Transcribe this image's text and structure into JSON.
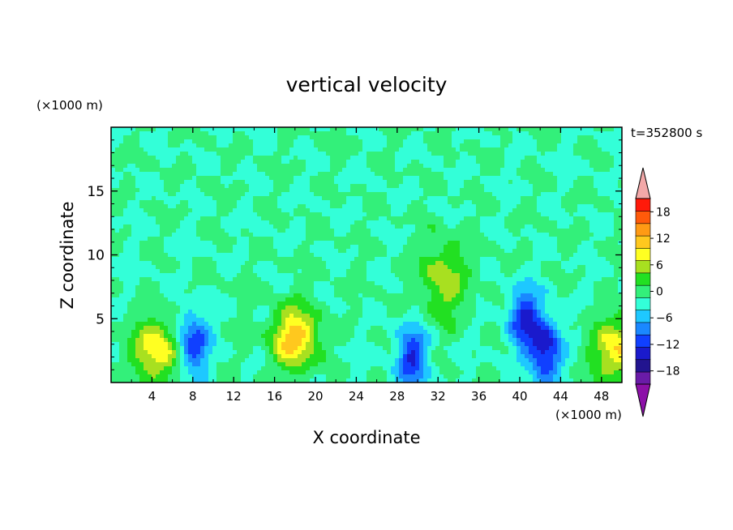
{
  "chart_data": {
    "type": "heatmap",
    "title": "vertical velocity",
    "xlabel": "X coordinate",
    "ylabel": "Z coordinate",
    "x_unit": "(×1000 m)",
    "y_unit": "(×1000 m)",
    "time_label": "t=352800 s",
    "xlim": [
      0,
      50
    ],
    "ylim": [
      0,
      20
    ],
    "x_ticks": [
      4,
      8,
      12,
      16,
      20,
      24,
      28,
      32,
      36,
      40,
      44,
      48
    ],
    "y_ticks": [
      5,
      10,
      15
    ],
    "colorbar": {
      "tick_labels": [
        "18",
        "12",
        "6",
        "0",
        "−6",
        "−12",
        "−18"
      ],
      "tick_values": [
        18,
        12,
        6,
        0,
        -6,
        -12,
        -18
      ],
      "levels": [
        -21,
        -18,
        -15,
        -12,
        -9,
        -6,
        -3,
        0,
        3,
        6,
        9,
        12,
        15,
        18,
        21
      ],
      "colors": [
        "#6a1ba8",
        "#22148f",
        "#1a1acc",
        "#1040ff",
        "#1a88ff",
        "#1ec8ff",
        "#33ffd8",
        "#33f07a",
        "#22e022",
        "#a8e020",
        "#ffff22",
        "#ffc81e",
        "#ff9a14",
        "#ff5a0a",
        "#ff1a0a"
      ],
      "under_color": "#8c10a8",
      "over_color": "#f2a8a8"
    },
    "features": [
      {
        "type": "updraft",
        "x": 4.5,
        "z": 2.5,
        "peak": 12
      },
      {
        "type": "downdraft",
        "x": 8,
        "z": 3,
        "peak": -12
      },
      {
        "type": "updraft",
        "x": 18,
        "z": 3.5,
        "peak": 14
      },
      {
        "type": "updraft",
        "x": 32.5,
        "z": 8,
        "peak": 8
      },
      {
        "type": "downdraft",
        "x": 29.5,
        "z": 2,
        "peak": -12
      },
      {
        "type": "downdraft",
        "x": 40.5,
        "z": 5,
        "peak": -12
      },
      {
        "type": "downdraft",
        "x": 42.5,
        "z": 2.5,
        "peak": -14
      },
      {
        "type": "updraft",
        "x": 49.5,
        "z": 2.5,
        "peak": 12
      }
    ]
  }
}
